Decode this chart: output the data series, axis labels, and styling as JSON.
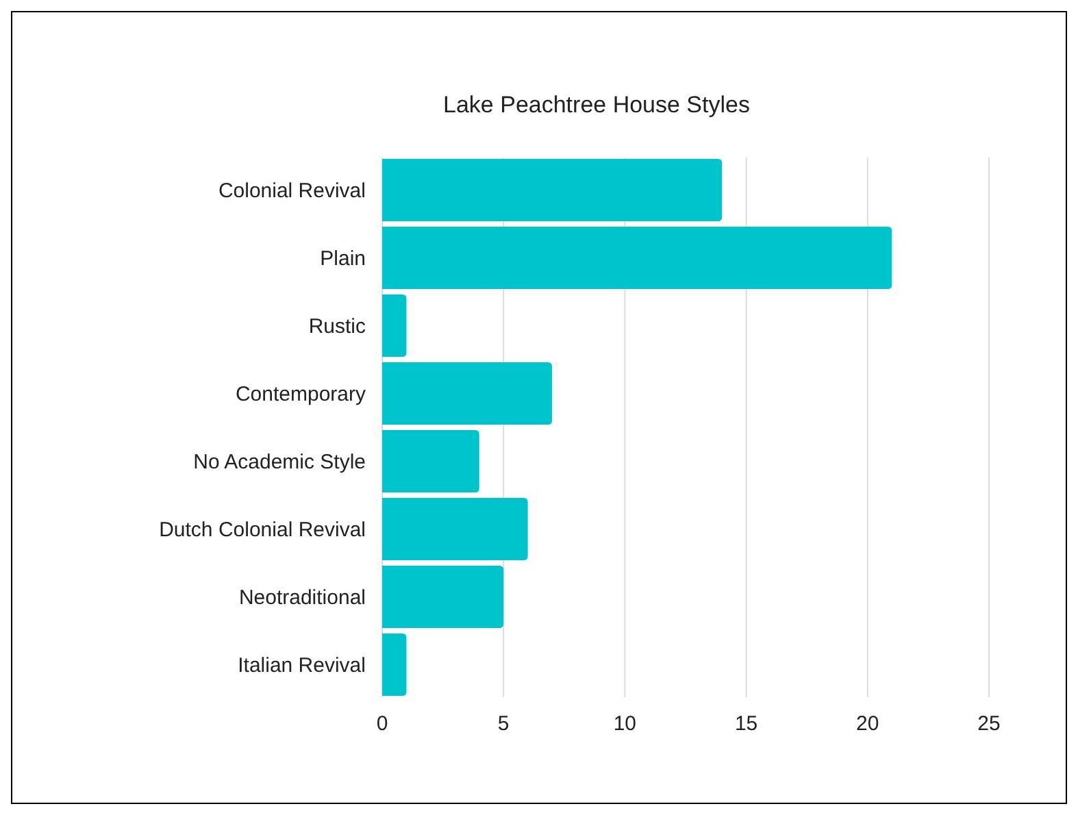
{
  "chart_data": {
    "type": "bar",
    "orientation": "horizontal",
    "title": "Lake Peachtree House Styles",
    "categories": [
      "Colonial Revival",
      "Plain",
      "Rustic",
      "Contemporary",
      "No Academic Style",
      "Dutch Colonial Revival",
      "Neotraditional",
      "Italian Revival"
    ],
    "values": [
      14,
      21,
      1,
      7,
      4,
      6,
      5,
      1
    ],
    "color": "#00c4cc",
    "xlim": [
      0,
      25
    ],
    "xticks": [
      0,
      5,
      10,
      15,
      20,
      25
    ],
    "grid": "x"
  }
}
